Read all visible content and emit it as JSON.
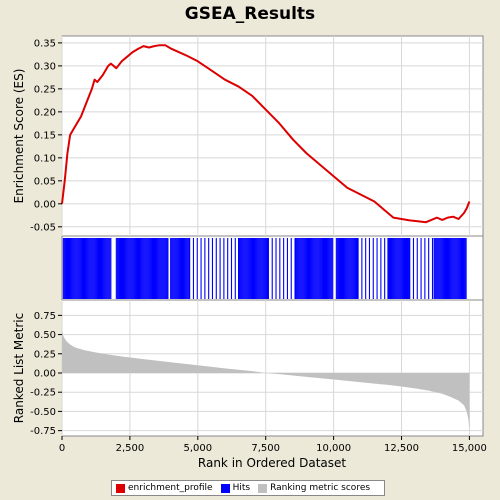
{
  "chart_data": {
    "type": "line",
    "title": "GSEA_Results",
    "xlabel": "Rank in Ordered Dataset",
    "xlim": [
      0,
      15500
    ],
    "x_ticks": [
      0,
      2500,
      5000,
      7500,
      10000,
      12500,
      15000
    ],
    "x_tick_labels": [
      "0",
      "2,500",
      "5,000",
      "7,500",
      "10,000",
      "12,500",
      "15,000"
    ],
    "panels": [
      {
        "name": "enrichment",
        "ylabel": "Enrichment Score (ES)",
        "ylim": [
          -0.07,
          0.365
        ],
        "y_ticks": [
          -0.05,
          0.0,
          0.05,
          0.1,
          0.15,
          0.2,
          0.25,
          0.3,
          0.35
        ],
        "y_tick_labels": [
          "-0.05",
          "0.00",
          "0.05",
          "0.10",
          "0.15",
          "0.20",
          "0.25",
          "0.30",
          "0.35"
        ],
        "grid": true,
        "series": [
          {
            "name": "enrichment_profile",
            "color": "#dd0000",
            "x": [
              0,
              100,
              200,
              300,
              400,
              500,
              700,
              900,
              1100,
              1200,
              1300,
              1500,
              1700,
              1800,
              2000,
              2200,
              2400,
              2600,
              2800,
              3000,
              3200,
              3400,
              3600,
              3800,
              4000,
              4300,
              4600,
              5000,
              5500,
              6000,
              6500,
              7000,
              7500,
              8000,
              8500,
              9000,
              9500,
              10000,
              10500,
              11000,
              11500,
              12000,
              12200,
              12500,
              12800,
              13100,
              13400,
              13600,
              13800,
              14000,
              14200,
              14400,
              14600,
              14800,
              14900,
              15000
            ],
            "y": [
              0.0,
              0.05,
              0.11,
              0.15,
              0.16,
              0.17,
              0.19,
              0.22,
              0.25,
              0.27,
              0.265,
              0.28,
              0.3,
              0.305,
              0.295,
              0.31,
              0.32,
              0.33,
              0.337,
              0.343,
              0.34,
              0.343,
              0.345,
              0.345,
              0.338,
              0.33,
              0.322,
              0.31,
              0.29,
              0.27,
              0.255,
              0.235,
              0.205,
              0.175,
              0.14,
              0.11,
              0.085,
              0.06,
              0.035,
              0.02,
              0.005,
              -0.02,
              -0.03,
              -0.033,
              -0.036,
              -0.038,
              -0.04,
              -0.035,
              -0.03,
              -0.035,
              -0.03,
              -0.028,
              -0.033,
              -0.02,
              -0.01,
              0.005
            ]
          }
        ]
      },
      {
        "name": "hits",
        "series": [
          {
            "name": "Hits",
            "color": "#0000ff",
            "type": "barcode",
            "dense_ranges": [
              [
                50,
                1800
              ],
              [
                2000,
                3900
              ],
              [
                4000,
                4700
              ],
              [
                6500,
                7600
              ],
              [
                8600,
                10000
              ],
              [
                10100,
                10900
              ],
              [
                12000,
                12800
              ],
              [
                13700,
                14900
              ]
            ],
            "dense_step": 38,
            "sparse_ranges": [
              [
                4700,
                6500
              ],
              [
                7600,
                8600
              ],
              [
                10900,
                12000
              ],
              [
                12800,
                13700
              ]
            ],
            "sparse_step": 140
          }
        ]
      },
      {
        "name": "ranking",
        "ylabel": "Ranked List Metric",
        "ylim": [
          -0.82,
          0.95
        ],
        "y_ticks": [
          -0.75,
          -0.5,
          -0.25,
          0.0,
          0.25,
          0.5,
          0.75
        ],
        "y_tick_labels": [
          "-0.75",
          "-0.50",
          "-0.25",
          "0.00",
          "0.25",
          "0.50",
          "0.75"
        ],
        "grid": true,
        "series": [
          {
            "name": "Ranking metric scores",
            "color": "#c0c0c0",
            "type": "area",
            "x": [
              0,
              50,
              150,
              300,
              500,
              800,
              1200,
              1700,
              2300,
              3000,
              4000,
              5000,
              6000,
              7000,
              7500,
              8000,
              9000,
              10000,
              11000,
              12000,
              12500,
              13000,
              13500,
              14000,
              14300,
              14600,
              14800,
              14900,
              14960,
              15000
            ],
            "y": [
              0.56,
              0.48,
              0.42,
              0.37,
              0.33,
              0.3,
              0.27,
              0.24,
              0.21,
              0.18,
              0.14,
              0.1,
              0.06,
              0.025,
              0.0,
              -0.015,
              -0.05,
              -0.085,
              -0.12,
              -0.155,
              -0.175,
              -0.2,
              -0.23,
              -0.27,
              -0.31,
              -0.36,
              -0.42,
              -0.5,
              -0.6,
              -0.75
            ]
          }
        ]
      }
    ],
    "legend": {
      "placement": "bottom",
      "entries": [
        {
          "label": "enrichment_profile",
          "color": "#dd0000"
        },
        {
          "label": "Hits",
          "color": "#0000ff"
        },
        {
          "label": "Ranking metric scores",
          "color": "#c0c0c0"
        }
      ]
    }
  }
}
